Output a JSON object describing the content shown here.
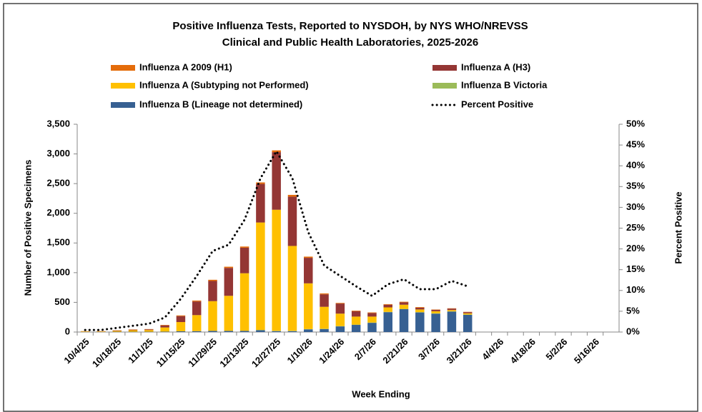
{
  "chart_data": {
    "type": "bar",
    "stacked": true,
    "title": [
      "Positive Influenza Tests, Reported to NYSDOH, by NYS WHO/NREVSS",
      "Clinical and Public Health Laboratories, 2025-2026"
    ],
    "x_label": "Week Ending",
    "y_label": "Number of Positive Specimens",
    "y2_label": "Percent Positive",
    "categories": [
      "10/4/25",
      null,
      "10/18/25",
      null,
      "11/1/25",
      null,
      "11/15/25",
      null,
      "11/29/25",
      null,
      "12/13/25",
      null,
      "12/27/25",
      null,
      "1/10/26",
      null,
      "1/24/26",
      null,
      "2/7/26",
      null,
      "2/21/26",
      null,
      "3/7/26",
      null,
      "3/21/26",
      null,
      "4/4/26",
      null,
      "4/18/26",
      null,
      "5/2/26",
      null,
      "5/16/26",
      null
    ],
    "series": [
      {
        "name": "Influenza A 2009 (H1)",
        "color": "#e46c0a",
        "values": [
          2,
          2,
          3,
          4,
          5,
          8,
          12,
          15,
          20,
          20,
          20,
          25,
          30,
          30,
          20,
          15,
          10,
          10,
          10,
          10,
          10,
          10,
          5,
          5,
          5,
          null,
          null,
          null,
          null,
          null,
          null,
          null,
          null,
          null
        ]
      },
      {
        "name": "Influenza A (H3)",
        "color": "#943634",
        "values": [
          3,
          4,
          8,
          10,
          12,
          35,
          100,
          230,
          340,
          470,
          430,
          650,
          970,
          830,
          430,
          210,
          170,
          90,
          60,
          45,
          40,
          30,
          25,
          25,
          20,
          null,
          null,
          null,
          null,
          null,
          null,
          null,
          null,
          null
        ]
      },
      {
        "name": "Influenza A (Subtyping not Performed)",
        "color": "#ffc000",
        "values": [
          8,
          8,
          15,
          25,
          28,
          70,
          155,
          270,
          500,
          590,
          970,
          1810,
          2040,
          1430,
          770,
          370,
          210,
          135,
          100,
          75,
          70,
          45,
          35,
          20,
          20,
          null,
          null,
          null,
          null,
          null,
          null,
          null,
          null,
          null
        ]
      },
      {
        "name": "Influenza B Victoria",
        "color": "#9bbb59",
        "values": [
          0,
          0,
          0,
          0,
          0,
          0,
          0,
          0,
          0,
          0,
          0,
          5,
          5,
          5,
          5,
          5,
          5,
          5,
          5,
          5,
          5,
          5,
          5,
          5,
          5,
          null,
          null,
          null,
          null,
          null,
          null,
          null,
          null,
          null
        ]
      },
      {
        "name": "Influenza B (Lineage not determined)",
        "color": "#376092",
        "values": [
          2,
          2,
          4,
          5,
          5,
          7,
          13,
          15,
          20,
          20,
          20,
          30,
          15,
          15,
          45,
          50,
          95,
          120,
          155,
          335,
          385,
          330,
          310,
          345,
          290,
          null,
          null,
          null,
          null,
          null,
          null,
          null,
          null,
          null
        ]
      },
      {
        "name": "Percent Positive",
        "color": "#000000",
        "type": "line",
        "style": "dotted",
        "axis": "y2",
        "values": [
          0.5,
          0.5,
          1,
          1.5,
          2,
          3.5,
          8,
          13.5,
          19.5,
          21,
          27,
          37,
          43.5,
          37,
          24,
          16,
          13.5,
          11,
          8.7,
          11.5,
          12.7,
          10.3,
          10.3,
          12.3,
          11,
          null,
          null,
          null,
          null,
          null,
          null,
          null,
          null,
          null
        ]
      }
    ],
    "ylim": [
      0,
      3500
    ],
    "yticks": [
      0,
      {
        "value": 500,
        "label": "500"
      },
      {
        "value": 1000,
        "label": "1,000"
      },
      {
        "value": 1500,
        "label": "1,500"
      },
      {
        "value": 2000,
        "label": "2,000"
      },
      {
        "value": 2500,
        "label": "2,500"
      },
      {
        "value": 3000,
        "label": "3,000"
      },
      {
        "value": 3500,
        "label": "3,500"
      }
    ],
    "y2lim": [
      0,
      50
    ],
    "y2ticks": [
      {
        "value": 0,
        "label": "0%"
      },
      {
        "value": 5,
        "label": "5%"
      },
      {
        "value": 10,
        "label": "10%"
      },
      {
        "value": 15,
        "label": "15%"
      },
      {
        "value": 20,
        "label": "20%"
      },
      {
        "value": 25,
        "label": "25%"
      },
      {
        "value": 30,
        "label": "30%"
      },
      {
        "value": 35,
        "label": "35%"
      },
      {
        "value": 40,
        "label": "40%"
      },
      {
        "value": 45,
        "label": "45%"
      },
      {
        "value": 50,
        "label": "50%"
      }
    ],
    "grid": false,
    "legend": "top"
  }
}
